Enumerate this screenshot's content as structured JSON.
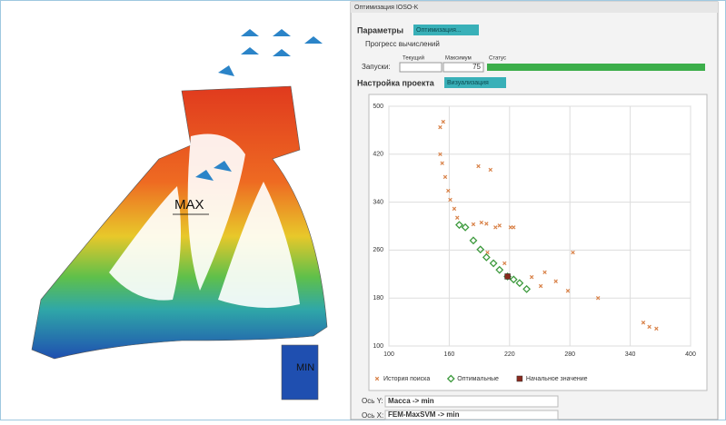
{
  "window": {
    "title": "Оптимизация IOSO-K"
  },
  "tabs": {
    "params": "Параметры",
    "optimize": "Оптимизация..."
  },
  "progress": {
    "title": "Прогресс вычислений",
    "runs_label": "Запуски:",
    "current_label": "Текущий",
    "max_label": "Максимум",
    "status_label": "Статус",
    "max": 75
  },
  "project": {
    "title": "Настройка проекта",
    "button": "Визуализация"
  },
  "model": {
    "max_label": "MAX",
    "min_label": "MIN"
  },
  "axes_settings": {
    "y_label": "Ось Y:",
    "y_value": "Масса -> min",
    "x_label": "Ось X:",
    "x_value": "FEM-MaxSVM -> min"
  },
  "chart_data": {
    "type": "scatter",
    "xlim": [
      100,
      400
    ],
    "xticks": [
      100,
      160,
      220,
      280,
      340,
      400
    ],
    "ylim": [
      100,
      500
    ],
    "yticks": [
      100,
      180,
      260,
      340,
      420,
      500
    ],
    "grid": true,
    "series": [
      {
        "name": "История поиска",
        "color": "#d9834a",
        "marker": "x",
        "x": [
          154,
          151,
          151,
          153,
          156,
          159,
          161,
          165,
          168,
          189,
          201,
          192,
          206,
          224,
          242,
          255,
          266,
          278,
          283,
          308,
          353,
          359,
          366,
          251,
          184,
          197,
          210,
          221,
          198,
          215
        ],
        "y": [
          474,
          465,
          420,
          405,
          382,
          359,
          344,
          329,
          314,
          400,
          394,
          306,
          298,
          298,
          215,
          223,
          208,
          192,
          256,
          180,
          139,
          132,
          129,
          200,
          303,
          304,
          301,
          298,
          256,
          238
        ]
      },
      {
        "name": "Оптимальные",
        "color": "#3d9a3d",
        "marker": "diamond",
        "x": [
          170,
          176,
          184,
          191,
          197,
          204,
          210,
          218,
          224,
          230,
          237
        ],
        "y": [
          302,
          298,
          276,
          261,
          248,
          238,
          227,
          216,
          211,
          205,
          195
        ]
      },
      {
        "name": "Начальное значение",
        "color": "#8a2a1e",
        "marker": "square",
        "x": [
          218
        ],
        "y": [
          216
        ]
      }
    ]
  }
}
